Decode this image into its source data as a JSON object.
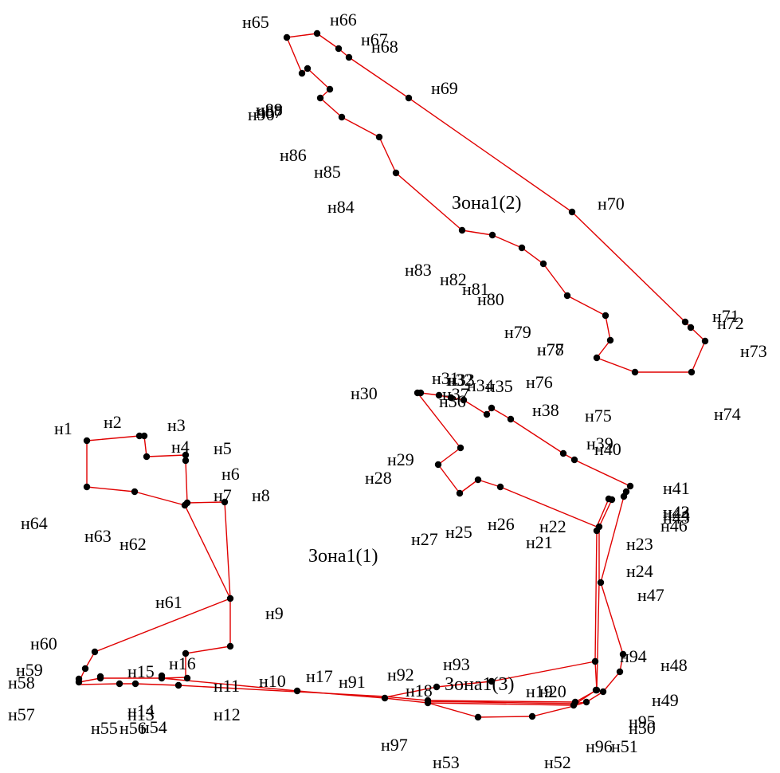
{
  "colors": {
    "boundary": "#e00000",
    "point": "#000000",
    "text": "#000000"
  },
  "zones": [
    {
      "id": "zone-1-1",
      "label": "Зона1(1)"
    },
    {
      "id": "zone-1-2",
      "label": "Зона1(2)"
    },
    {
      "id": "zone-1-3",
      "label": "Зона1(3)"
    }
  ],
  "point_labels": [
    "н1",
    "н2",
    "н3",
    "н4",
    "н5",
    "н6",
    "н7",
    "н8",
    "н9",
    "н10",
    "н11",
    "н12",
    "н13",
    "н14",
    "н15",
    "н16",
    "н17",
    "н18",
    "н19",
    "н20",
    "н21",
    "н22",
    "н23",
    "н24",
    "н25",
    "н26",
    "н27",
    "н28",
    "н29",
    "н30",
    "н31",
    "н32",
    "н33",
    "н34",
    "н35",
    "н36",
    "н37",
    "н38",
    "н39",
    "н40",
    "н41",
    "н42",
    "н43",
    "н44",
    "н45",
    "н46",
    "н47",
    "н48",
    "н49",
    "н50",
    "н51",
    "н52",
    "н53",
    "н54",
    "н55",
    "н56",
    "н57",
    "н58",
    "н59",
    "н60",
    "н61",
    "н62",
    "н63",
    "н64",
    "н65",
    "н66",
    "н67",
    "н68",
    "н69",
    "н70",
    "н71",
    "н72",
    "н73",
    "н74",
    "н75",
    "н76",
    "н77",
    "н78",
    "н79",
    "н80",
    "н81",
    "н82",
    "н83",
    "н84",
    "н85",
    "н86",
    "н87",
    "н88",
    "н89",
    "н90",
    "н91",
    "н92",
    "н93",
    "н94",
    "н95",
    "н96",
    "н97"
  ]
}
